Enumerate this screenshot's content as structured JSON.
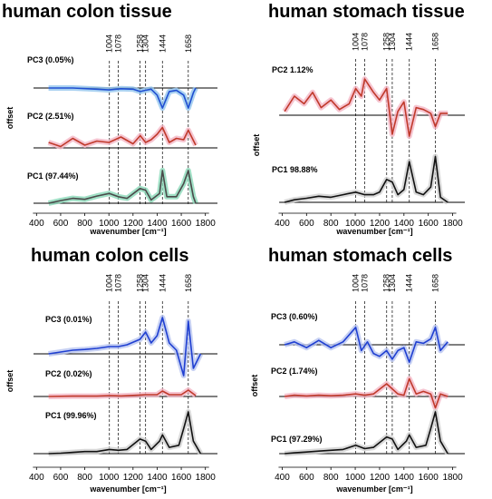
{
  "chart_data": [
    {
      "type": "line",
      "title": "human colon tissue",
      "xlabel": "wavenumber [cm⁻¹]",
      "ylabel": "offset",
      "xlim": [
        300,
        1900
      ],
      "xticks": [
        "400",
        "600",
        "800",
        "1000",
        "1200",
        "1400",
        "1600",
        "1800"
      ],
      "marker_lines": [
        "1004",
        "1078",
        "1258",
        "1304",
        "1444",
        "1658"
      ],
      "series": [
        {
          "name": "PC3 (0.05%)",
          "color": "#1f4fd1",
          "band_color": "#93c6ee",
          "x": [
            500,
            700,
            900,
            1000,
            1100,
            1200,
            1260,
            1300,
            1350,
            1400,
            1444,
            1500,
            1560,
            1620,
            1658,
            1700,
            1720
          ],
          "y": [
            0,
            0,
            -0.05,
            -0.08,
            -0.03,
            -0.05,
            -0.15,
            -0.1,
            -0.05,
            -0.3,
            -0.85,
            -0.15,
            -0.1,
            -0.3,
            -0.85,
            -0.2,
            0
          ]
        },
        {
          "name": "PC2 (2.51%)",
          "color": "#c0392b",
          "band_color": "#f4b6c6",
          "x": [
            500,
            600,
            700,
            800,
            900,
            1000,
            1100,
            1200,
            1260,
            1304,
            1350,
            1400,
            1444,
            1500,
            1560,
            1620,
            1658,
            1720
          ],
          "y": [
            0.2,
            0.05,
            0.35,
            0.1,
            0.25,
            0.2,
            0.4,
            0.15,
            0.45,
            0.2,
            0.3,
            0.5,
            0.75,
            0.2,
            0.35,
            0.3,
            0.65,
            0.1
          ]
        },
        {
          "name": "PC1 (97.44%)",
          "color": "#4a4a4a",
          "band_color": "#8ad8b8",
          "x": [
            500,
            600,
            700,
            800,
            900,
            1004,
            1078,
            1150,
            1258,
            1304,
            1350,
            1420,
            1444,
            1480,
            1560,
            1620,
            1658,
            1700,
            1720
          ],
          "y": [
            0,
            0.08,
            0.15,
            0.12,
            0.22,
            0.3,
            0.2,
            0.15,
            0.45,
            0.4,
            0.1,
            0.3,
            1.0,
            0.2,
            0.2,
            0.6,
            1.0,
            0.2,
            0
          ]
        }
      ]
    },
    {
      "type": "line",
      "title": "human stomach tissue",
      "xlabel": "wavenumber [cm⁻¹]",
      "ylabel": "offset",
      "xlim": [
        300,
        1900
      ],
      "xticks": [
        "400",
        "600",
        "800",
        "1000",
        "1200",
        "1400",
        "1600",
        "1800"
      ],
      "marker_lines": [
        "1004",
        "1078",
        "1258",
        "1304",
        "1444",
        "1658"
      ],
      "series": [
        {
          "name": "PC2 1.12%",
          "color": "#c0392b",
          "band_color": "#f4b6c6",
          "x": [
            420,
            500,
            580,
            650,
            720,
            800,
            870,
            950,
            1004,
            1050,
            1078,
            1150,
            1200,
            1258,
            1304,
            1350,
            1400,
            1444,
            1500,
            1560,
            1620,
            1658,
            1700,
            1760
          ],
          "y": [
            0.1,
            0.5,
            0.3,
            0.6,
            0.2,
            0.4,
            0.15,
            0.3,
            0.7,
            0.5,
            0.95,
            0.6,
            0.4,
            0.7,
            -0.5,
            0.1,
            0.35,
            -0.55,
            0.2,
            0.15,
            0.05,
            -0.3,
            0.05,
            0.05
          ]
        },
        {
          "name": "PC1 98.88%",
          "color": "#111111",
          "band_color": "#d0d0d0",
          "x": [
            420,
            500,
            600,
            700,
            800,
            900,
            1004,
            1078,
            1150,
            1200,
            1258,
            1304,
            1350,
            1400,
            1444,
            1500,
            1560,
            1620,
            1658,
            1700,
            1760
          ],
          "y": [
            0,
            0.05,
            0.08,
            0.12,
            0.1,
            0.15,
            0.2,
            0.15,
            0.15,
            0.2,
            0.45,
            0.4,
            0.15,
            0.25,
            0.8,
            0.2,
            0.15,
            0.3,
            0.9,
            0.1,
            0
          ]
        }
      ]
    },
    {
      "type": "line",
      "title": "human colon cells",
      "xlabel": "wavenumber [cm⁻¹]",
      "ylabel": "offset",
      "xlim": [
        300,
        1900
      ],
      "xticks": [
        "400",
        "600",
        "800",
        "1000",
        "1200",
        "1400",
        "1600",
        "1800"
      ],
      "marker_lines": [
        "1004",
        "1078",
        "1258",
        "1304",
        "1444",
        "1658"
      ],
      "series": [
        {
          "name": "PC3 (0.01%)",
          "color": "#1f3fd1",
          "band_color": "#b8c4f0",
          "x": [
            500,
            600,
            700,
            800,
            900,
            1004,
            1078,
            1150,
            1258,
            1304,
            1350,
            1400,
            1444,
            1500,
            1560,
            1620,
            1658,
            1700,
            1760
          ],
          "y": [
            0,
            0.05,
            0.1,
            0.12,
            0.15,
            0.2,
            0.2,
            0.25,
            0.4,
            0.6,
            0.3,
            0.5,
            1.0,
            0.3,
            0.1,
            -0.6,
            0.9,
            -0.4,
            0
          ]
        },
        {
          "name": "PC2 (0.02%)",
          "color": "#c0392b",
          "band_color": "#f4b6c6",
          "x": [
            500,
            700,
            900,
            1004,
            1100,
            1258,
            1304,
            1400,
            1444,
            1500,
            1600,
            1658,
            1720
          ],
          "y": [
            0,
            0.02,
            0.02,
            0.05,
            0.03,
            0.08,
            0.1,
            0.1,
            0.3,
            0.1,
            0.1,
            0.35,
            0.05
          ]
        },
        {
          "name": "PC1 (99.96%)",
          "color": "#111111",
          "band_color": "#d0d0d0",
          "x": [
            500,
            600,
            700,
            800,
            900,
            1004,
            1078,
            1150,
            1258,
            1304,
            1350,
            1420,
            1444,
            1500,
            1580,
            1620,
            1658,
            1700,
            1760
          ],
          "y": [
            0,
            0.01,
            0.03,
            0.05,
            0.05,
            0.1,
            0.08,
            0.1,
            0.35,
            0.3,
            0.1,
            0.3,
            0.45,
            0.15,
            0.2,
            0.6,
            1.0,
            0.3,
            0
          ]
        }
      ]
    },
    {
      "type": "line",
      "title": "human stomach cells",
      "xlabel": "wavenumber [cm⁻¹]",
      "ylabel": "offset",
      "xlim": [
        300,
        1900
      ],
      "xticks": [
        "400",
        "600",
        "800",
        "1000",
        "1200",
        "1400",
        "1600",
        "1800"
      ],
      "marker_lines": [
        "1004",
        "1078",
        "1258",
        "1304",
        "1444",
        "1658"
      ],
      "series": [
        {
          "name": "PC3 (0.60%)",
          "color": "#1f3fd1",
          "band_color": "#b8c4f0",
          "x": [
            420,
            500,
            600,
            700,
            800,
            900,
            1004,
            1050,
            1100,
            1150,
            1200,
            1258,
            1304,
            1350,
            1400,
            1444,
            1500,
            1560,
            1620,
            1658,
            1700,
            1760
          ],
          "y": [
            0,
            0.1,
            -0.1,
            0.15,
            -0.1,
            0.1,
            0.6,
            -0.2,
            0.1,
            -0.3,
            -0.4,
            -0.2,
            -0.5,
            -0.2,
            -0.1,
            -0.6,
            0.1,
            0.05,
            0.2,
            0.6,
            -0.2,
            0.1
          ]
        },
        {
          "name": "PC2 (1.74%)",
          "color": "#c0392b",
          "band_color": "#f4b6c6",
          "x": [
            420,
            500,
            600,
            700,
            800,
            900,
            1004,
            1078,
            1150,
            1258,
            1304,
            1350,
            1400,
            1444,
            1500,
            1560,
            1620,
            1658,
            1700,
            1760
          ],
          "y": [
            0,
            0.05,
            0.02,
            0.05,
            0.03,
            0.05,
            0.1,
            0.05,
            0.1,
            0.5,
            0.3,
            0.1,
            0.05,
            0.7,
            0.1,
            0.2,
            0.1,
            -0.45,
            0.1,
            0
          ]
        },
        {
          "name": "PC1 (97.29%)",
          "color": "#111111",
          "band_color": "#d0d0d0",
          "x": [
            420,
            500,
            600,
            700,
            800,
            900,
            1004,
            1078,
            1150,
            1258,
            1304,
            1350,
            1420,
            1444,
            1500,
            1580,
            1620,
            1658,
            1700,
            1760
          ],
          "y": [
            0,
            0.02,
            0.04,
            0.06,
            0.08,
            0.1,
            0.2,
            0.12,
            0.15,
            0.4,
            0.35,
            0.1,
            0.3,
            0.45,
            0.15,
            0.2,
            0.6,
            1.0,
            0.3,
            0
          ]
        }
      ]
    }
  ]
}
